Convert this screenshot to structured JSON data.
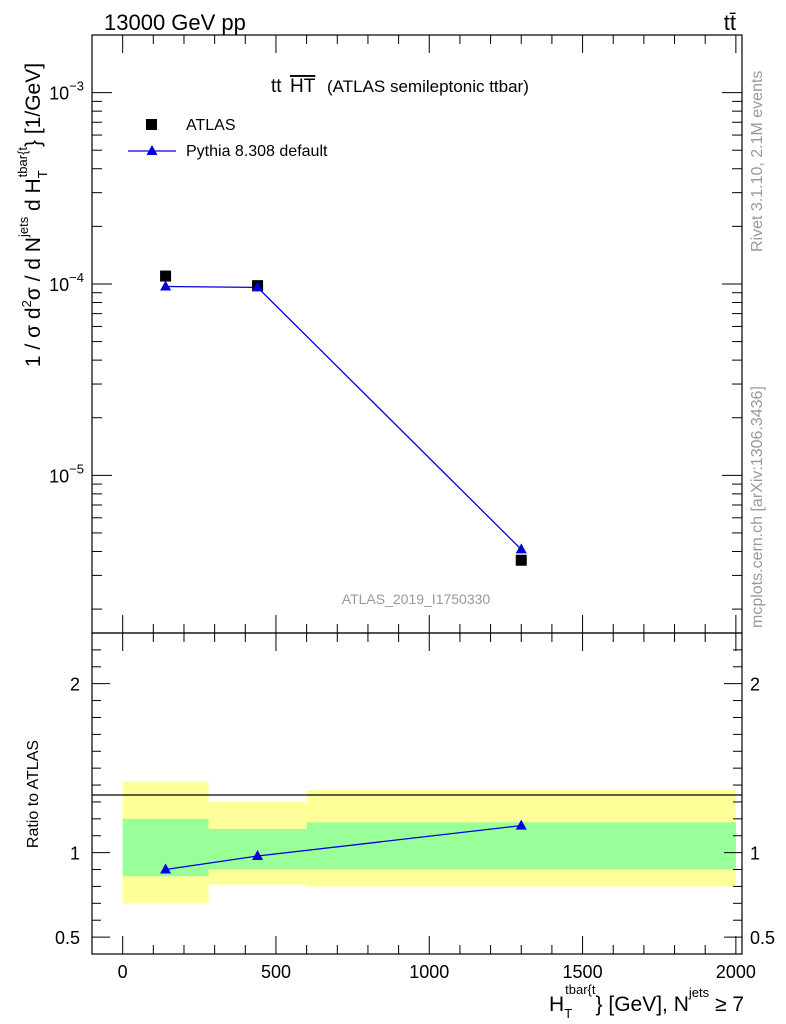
{
  "header": {
    "left": "13000 GeV pp",
    "right": "tt̄"
  },
  "side_labels": {
    "rivet": "Rivet 3.1.10,  2.1M events",
    "mcplots": "mcplots.cern.ch [arXiv:1306.3436]"
  },
  "chart_data": [
    {
      "type": "scatter",
      "title": "(ATLAS semileptonic ttbar)",
      "title_prefix": "tt",
      "title_overline": "HT",
      "ylabel": "1 / σ d²σ / d N^jets d H_T^tbar{t} [1/GeV]",
      "yscale": "log",
      "ylim": [
        1.5e-06,
        0.002
      ],
      "yticks": [
        {
          "value": 1e-05,
          "base": "10",
          "exp": "−5"
        },
        {
          "value": 0.0001,
          "base": "10",
          "exp": "−4"
        },
        {
          "value": 0.001,
          "base": "10",
          "exp": "−3"
        }
      ],
      "xlim": [
        -100,
        2020
      ],
      "analysis_label": "ATLAS_2019_I1750330",
      "legend_position": "top-left",
      "series": [
        {
          "name": "ATLAS",
          "marker": "square",
          "color": "#000000",
          "x": [
            140,
            440,
            1300
          ],
          "y": [
            0.00011,
            9.8e-05,
            3.6e-06
          ]
        },
        {
          "name": "Pythia 8.308 default",
          "marker": "triangle",
          "color": "#0000dd",
          "x": [
            140,
            440,
            1300
          ],
          "y": [
            9.7e-05,
            9.6e-05,
            4.1e-06
          ]
        }
      ]
    },
    {
      "type": "line",
      "ylabel": "Ratio to ATLAS",
      "xlabel": "H_T^tbar{t} [GeV], N^jets ≥ 7",
      "xlim": [
        -100,
        2020
      ],
      "ylim": [
        0.4,
        2.3
      ],
      "yticks": [
        "0.5",
        "1",
        "2"
      ],
      "xticks": [
        "0",
        "500",
        "1000",
        "1500",
        "2000"
      ],
      "bands": [
        {
          "x0": 0,
          "x1": 280,
          "yellow": [
            0.7,
            1.42
          ],
          "green": [
            0.86,
            1.2
          ]
        },
        {
          "x0": 280,
          "x1": 600,
          "yellow": [
            0.81,
            1.3
          ],
          "green": [
            0.9,
            1.14
          ]
        },
        {
          "x0": 600,
          "x1": 2000,
          "yellow": [
            0.8,
            1.37
          ],
          "green": [
            0.9,
            1.18
          ]
        }
      ],
      "series": [
        {
          "name": "Pythia 8.308 default",
          "color": "#0000dd",
          "x": [
            140,
            440,
            1300
          ],
          "y": [
            0.9,
            0.98,
            1.16
          ]
        }
      ]
    }
  ]
}
